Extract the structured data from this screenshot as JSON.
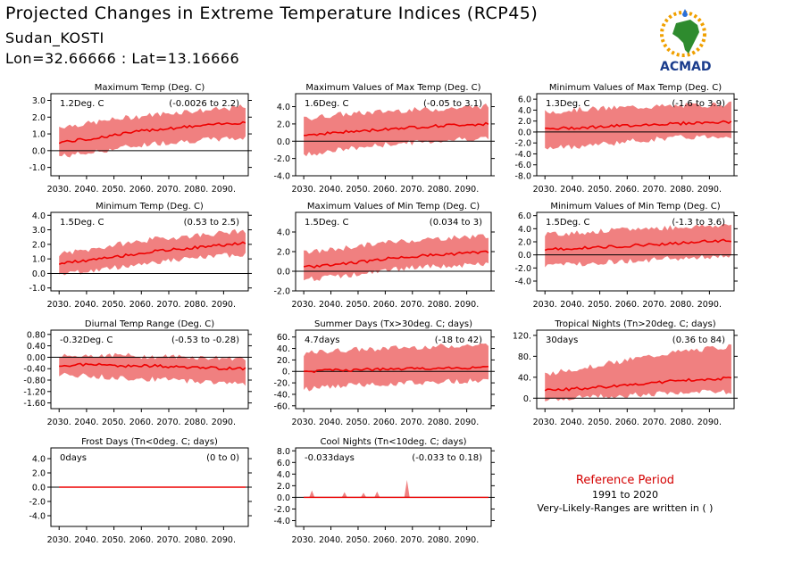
{
  "header": {
    "title": "Projected Changes in Extreme Temperature Indices (RCP45)",
    "location": "Sudan_KOSTI",
    "coords": "Lon=32.66666 : Lat=13.16666"
  },
  "logo": {
    "text": "ACMAD",
    "colors": {
      "africa": "#2e8b2e",
      "sun": "#f0a000",
      "text": "#1a3c8c",
      "drop": "#2a6fd6"
    }
  },
  "colors": {
    "band": "#f08080",
    "line": "#ee0000",
    "zero": "#000000"
  },
  "reference": {
    "title": "Reference Period",
    "years": "1991 to 2020",
    "note": "Very-Likely-Ranges are written in ( )"
  },
  "chart_data": [
    {
      "type": "area",
      "title": "Maximum Temp (Deg. C)",
      "mean_label": "1.2Deg. C",
      "range_label": "(-0.0026 to 2.2)",
      "x": [
        2030,
        2040,
        2050,
        2060,
        2070,
        2080,
        2090
      ],
      "x_ticks": [
        "2030.",
        "2040.",
        "2050.",
        "2060.",
        "2070.",
        "2080.",
        "2090."
      ],
      "y_ticks": [
        "-1.0",
        "0.0",
        "1.0",
        "2.0",
        "3.0"
      ],
      "ylim": [
        -1.5,
        3.4
      ],
      "series": [
        {
          "values": [
            0.5,
            0.7,
            1.0,
            1.25,
            1.4,
            1.55,
            1.7
          ]
        }
      ],
      "band": {
        "low": [
          -0.3,
          -0.1,
          0.2,
          0.45,
          0.6,
          0.7,
          0.8
        ],
        "high": [
          1.4,
          1.6,
          1.9,
          2.1,
          2.3,
          2.4,
          2.6
        ]
      }
    },
    {
      "type": "area",
      "title": "Maximum Values of Max Temp (Deg. C)",
      "mean_label": "1.6Deg. C",
      "range_label": "(-0.05 to 3.1)",
      "x": [
        2030,
        2040,
        2050,
        2060,
        2070,
        2080,
        2090
      ],
      "x_ticks": [
        "2030.",
        "2040.",
        "2050.",
        "2060.",
        "2070.",
        "2080.",
        "2090."
      ],
      "y_ticks": [
        "-4.0",
        "-2.0",
        "0.0",
        "2.0",
        "4.0"
      ],
      "ylim": [
        -4,
        5.5
      ],
      "series": [
        {
          "values": [
            0.7,
            1.0,
            1.2,
            1.5,
            1.7,
            1.9,
            2.0
          ]
        }
      ],
      "band": {
        "low": [
          -1.5,
          -1.0,
          -0.6,
          -0.2,
          0.0,
          0.3,
          0.4
        ],
        "high": [
          2.5,
          3.0,
          3.2,
          3.5,
          3.6,
          3.8,
          4.0
        ]
      }
    },
    {
      "type": "area",
      "title": "Minimum Values of Max Temp (Deg. C)",
      "mean_label": "1.3Deg. C",
      "range_label": "(-1.6 to 3.9)",
      "x": [
        2030,
        2040,
        2050,
        2060,
        2070,
        2080,
        2090
      ],
      "x_ticks": [
        "2030.",
        "2040.",
        "2050.",
        "2060.",
        "2070.",
        "2080.",
        "2090."
      ],
      "y_ticks": [
        "-8.0",
        "-6.0",
        "-4.0",
        "-2.0",
        "0.0",
        "2.0",
        "4.0",
        "6.0"
      ],
      "ylim": [
        -8,
        7
      ],
      "series": [
        {
          "values": [
            0.5,
            0.8,
            1.0,
            1.3,
            1.5,
            1.7,
            1.8
          ]
        }
      ],
      "band": {
        "low": [
          -3.0,
          -2.5,
          -2.0,
          -1.5,
          -1.0,
          -0.8,
          -0.6
        ],
        "high": [
          3.5,
          4.0,
          4.2,
          4.5,
          4.6,
          4.8,
          5.0
        ]
      }
    },
    {
      "type": "area",
      "title": "Minimum Temp (Deg. C)",
      "mean_label": "1.5Deg. C",
      "range_label": "(0.53 to 2.5)",
      "x": [
        2030,
        2040,
        2050,
        2060,
        2070,
        2080,
        2090
      ],
      "x_ticks": [
        "2030.",
        "2040.",
        "2050.",
        "2060.",
        "2070.",
        "2080.",
        "2090."
      ],
      "y_ticks": [
        "-1.0",
        "0.0",
        "1.0",
        "2.0",
        "3.0",
        "4.0"
      ],
      "ylim": [
        -1.2,
        4.2
      ],
      "series": [
        {
          "values": [
            0.7,
            0.9,
            1.2,
            1.5,
            1.7,
            1.9,
            2.1
          ]
        }
      ],
      "band": {
        "low": [
          0.0,
          0.2,
          0.5,
          0.8,
          1.0,
          1.2,
          1.4
        ],
        "high": [
          1.3,
          1.6,
          2.0,
          2.3,
          2.5,
          2.7,
          2.9
        ]
      }
    },
    {
      "type": "area",
      "title": "Maximum Values of Min Temp (Deg. C)",
      "mean_label": "1.5Deg. C",
      "range_label": "(0.034 to 3)",
      "x": [
        2030,
        2040,
        2050,
        2060,
        2070,
        2080,
        2090
      ],
      "x_ticks": [
        "2030.",
        "2040.",
        "2050.",
        "2060.",
        "2070.",
        "2080.",
        "2090."
      ],
      "y_ticks": [
        "-2.0",
        "0.0",
        "2.0",
        "4.0"
      ],
      "ylim": [
        -2,
        6
      ],
      "series": [
        {
          "values": [
            0.4,
            0.7,
            1.0,
            1.4,
            1.6,
            1.8,
            2.0
          ]
        }
      ],
      "band": {
        "low": [
          -0.8,
          -0.5,
          -0.2,
          0.3,
          0.5,
          0.6,
          0.8
        ],
        "high": [
          1.8,
          2.2,
          2.6,
          3.0,
          3.2,
          3.4,
          3.6
        ]
      }
    },
    {
      "type": "area",
      "title": "Minimum Values of Min Temp (Deg. C)",
      "mean_label": "1.5Deg. C",
      "range_label": "(-1.3 to 3.6)",
      "x": [
        2030,
        2040,
        2050,
        2060,
        2070,
        2080,
        2090
      ],
      "x_ticks": [
        "2030.",
        "2040.",
        "2050.",
        "2060.",
        "2070.",
        "2080.",
        "2090."
      ],
      "y_ticks": [
        "-4.0",
        "-2.0",
        "0.0",
        "2.0",
        "4.0",
        "6.0"
      ],
      "ylim": [
        -5.5,
        6.5
      ],
      "series": [
        {
          "values": [
            0.8,
            1.0,
            1.2,
            1.5,
            1.7,
            2.0,
            2.2
          ]
        }
      ],
      "band": {
        "low": [
          -1.5,
          -1.3,
          -1.0,
          -0.8,
          -0.5,
          -0.3,
          0.0
        ],
        "high": [
          3.0,
          3.3,
          3.6,
          3.9,
          4.1,
          4.3,
          4.5
        ]
      }
    },
    {
      "type": "area",
      "title": "Diurnal Temp Range (Deg. C)",
      "mean_label": "-0.32Deg. C",
      "range_label": "(-0.53 to -0.28)",
      "x": [
        2030,
        2040,
        2050,
        2060,
        2070,
        2080,
        2090
      ],
      "x_ticks": [
        "2030.",
        "2040.",
        "2050.",
        "2060.",
        "2070.",
        "2080.",
        "2090."
      ],
      "y_ticks": [
        "-1.60",
        "-1.20",
        "-0.80",
        "-0.40",
        "0.00",
        "0.40",
        "0.80"
      ],
      "ylim": [
        -1.8,
        0.95
      ],
      "series": [
        {
          "values": [
            -0.3,
            -0.25,
            -0.3,
            -0.3,
            -0.35,
            -0.38,
            -0.4
          ]
        }
      ],
      "band": {
        "low": [
          -0.6,
          -0.65,
          -0.7,
          -0.75,
          -0.8,
          -0.85,
          -0.9
        ],
        "high": [
          0.0,
          0.05,
          0.05,
          0.0,
          0.0,
          -0.05,
          -0.05
        ]
      }
    },
    {
      "type": "area",
      "title": "Summer Days (Tx>30deg. C; days)",
      "mean_label": "4.7days",
      "range_label": "(-18 to 42)",
      "x": [
        2030,
        2040,
        2050,
        2060,
        2070,
        2080,
        2090
      ],
      "x_ticks": [
        "2030.",
        "2040.",
        "2050.",
        "2060.",
        "2070.",
        "2080.",
        "2090."
      ],
      "y_ticks": [
        "-60.",
        "-40.",
        "-20.",
        "0.",
        "20.",
        "40.",
        "60."
      ],
      "ylim": [
        -65,
        72
      ],
      "series": [
        {
          "values": [
            0,
            2,
            3,
            4,
            5,
            6,
            7
          ]
        }
      ],
      "band": {
        "low": [
          -30,
          -25,
          -22,
          -20,
          -18,
          -16,
          -15
        ],
        "high": [
          30,
          35,
          38,
          40,
          42,
          44,
          45
        ]
      }
    },
    {
      "type": "area",
      "title": "Tropical Nights (Tn>20deg. C; days)",
      "mean_label": "30days",
      "range_label": "(0.36 to 84)",
      "x": [
        2030,
        2040,
        2050,
        2060,
        2070,
        2080,
        2090
      ],
      "x_ticks": [
        "2030.",
        "2040.",
        "2050.",
        "2060.",
        "2070.",
        "2080.",
        "2090."
      ],
      "y_ticks": [
        "0.",
        "40.",
        "80.",
        "120."
      ],
      "ylim": [
        -20,
        130
      ],
      "series": [
        {
          "values": [
            15,
            18,
            22,
            27,
            32,
            36,
            38
          ]
        }
      ],
      "band": {
        "low": [
          0,
          2,
          5,
          8,
          10,
          12,
          14
        ],
        "high": [
          45,
          55,
          65,
          75,
          85,
          92,
          98
        ]
      }
    },
    {
      "type": "area",
      "title": "Frost Days (Tn<0deg. C; days)",
      "mean_label": "0days",
      "range_label": "(0 to 0)",
      "x": [
        2030,
        2040,
        2050,
        2060,
        2070,
        2080,
        2090
      ],
      "x_ticks": [
        "2030.",
        "2040.",
        "2050.",
        "2060.",
        "2070.",
        "2080.",
        "2090."
      ],
      "y_ticks": [
        "-4.0",
        "-2.0",
        "0.0",
        "2.0",
        "4.0"
      ],
      "ylim": [
        -5.5,
        5.5
      ],
      "series": [
        {
          "values": [
            0,
            0,
            0,
            0,
            0,
            0,
            0
          ]
        }
      ],
      "band": {
        "low": [
          0,
          0,
          0,
          0,
          0,
          0,
          0
        ],
        "high": [
          0,
          0,
          0,
          0,
          0,
          0,
          0
        ]
      }
    },
    {
      "type": "area",
      "title": "Cool Nights (Tn<10deg. C; days)",
      "mean_label": "-0.033days",
      "range_label": "(-0.033 to 0.18)",
      "x": [
        2030,
        2040,
        2050,
        2060,
        2070,
        2080,
        2090
      ],
      "x_ticks": [
        "2030.",
        "2040.",
        "2050.",
        "2060.",
        "2070.",
        "2080.",
        "2090."
      ],
      "y_ticks": [
        "-4.0",
        "-2.0",
        "0.0",
        "2.0",
        "4.0",
        "6.0",
        "8.0"
      ],
      "ylim": [
        -5,
        8.5
      ],
      "series": [
        {
          "values": [
            0,
            0,
            0,
            0,
            0,
            0,
            0
          ]
        }
      ],
      "band": {
        "low": [
          0,
          0,
          0,
          0,
          0,
          0,
          0
        ],
        "high": [
          0,
          0,
          0,
          0,
          0,
          0,
          0
        ]
      }
    }
  ]
}
